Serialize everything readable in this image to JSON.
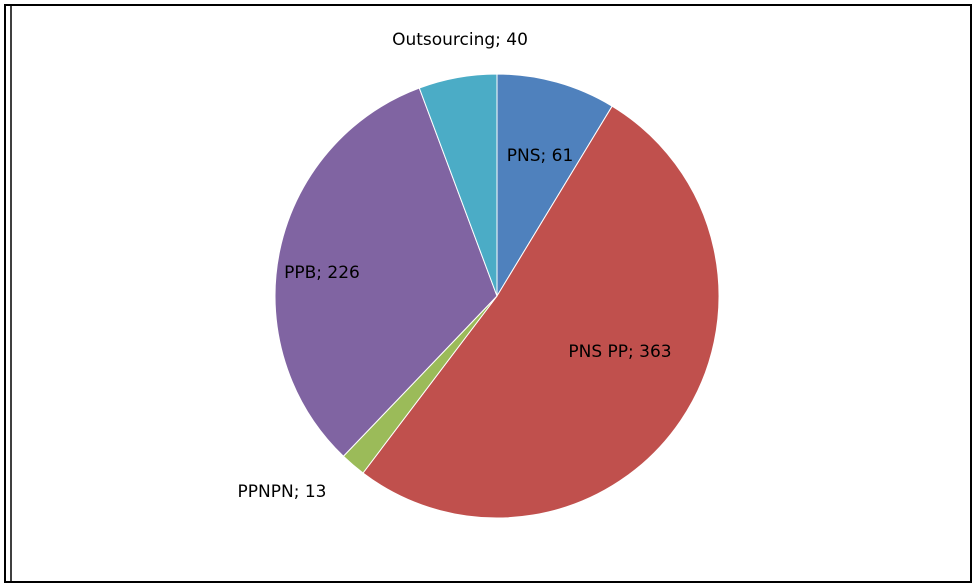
{
  "chart_data": {
    "type": "pie",
    "categories": [
      "PNS",
      "PNS PP",
      "PPNPN",
      "PPB",
      "Outsourcing"
    ],
    "values": [
      61,
      363,
      13,
      226,
      40
    ],
    "value_labels": [
      "PNS; 61",
      "PNS PP; 363",
      "PPNPN; 13",
      "PPB; 226",
      "Outsourcing; 40"
    ],
    "colors": [
      "#4f81bd",
      "#c0504d",
      "#9bbb59",
      "#8064a2",
      "#4bacc6"
    ]
  }
}
